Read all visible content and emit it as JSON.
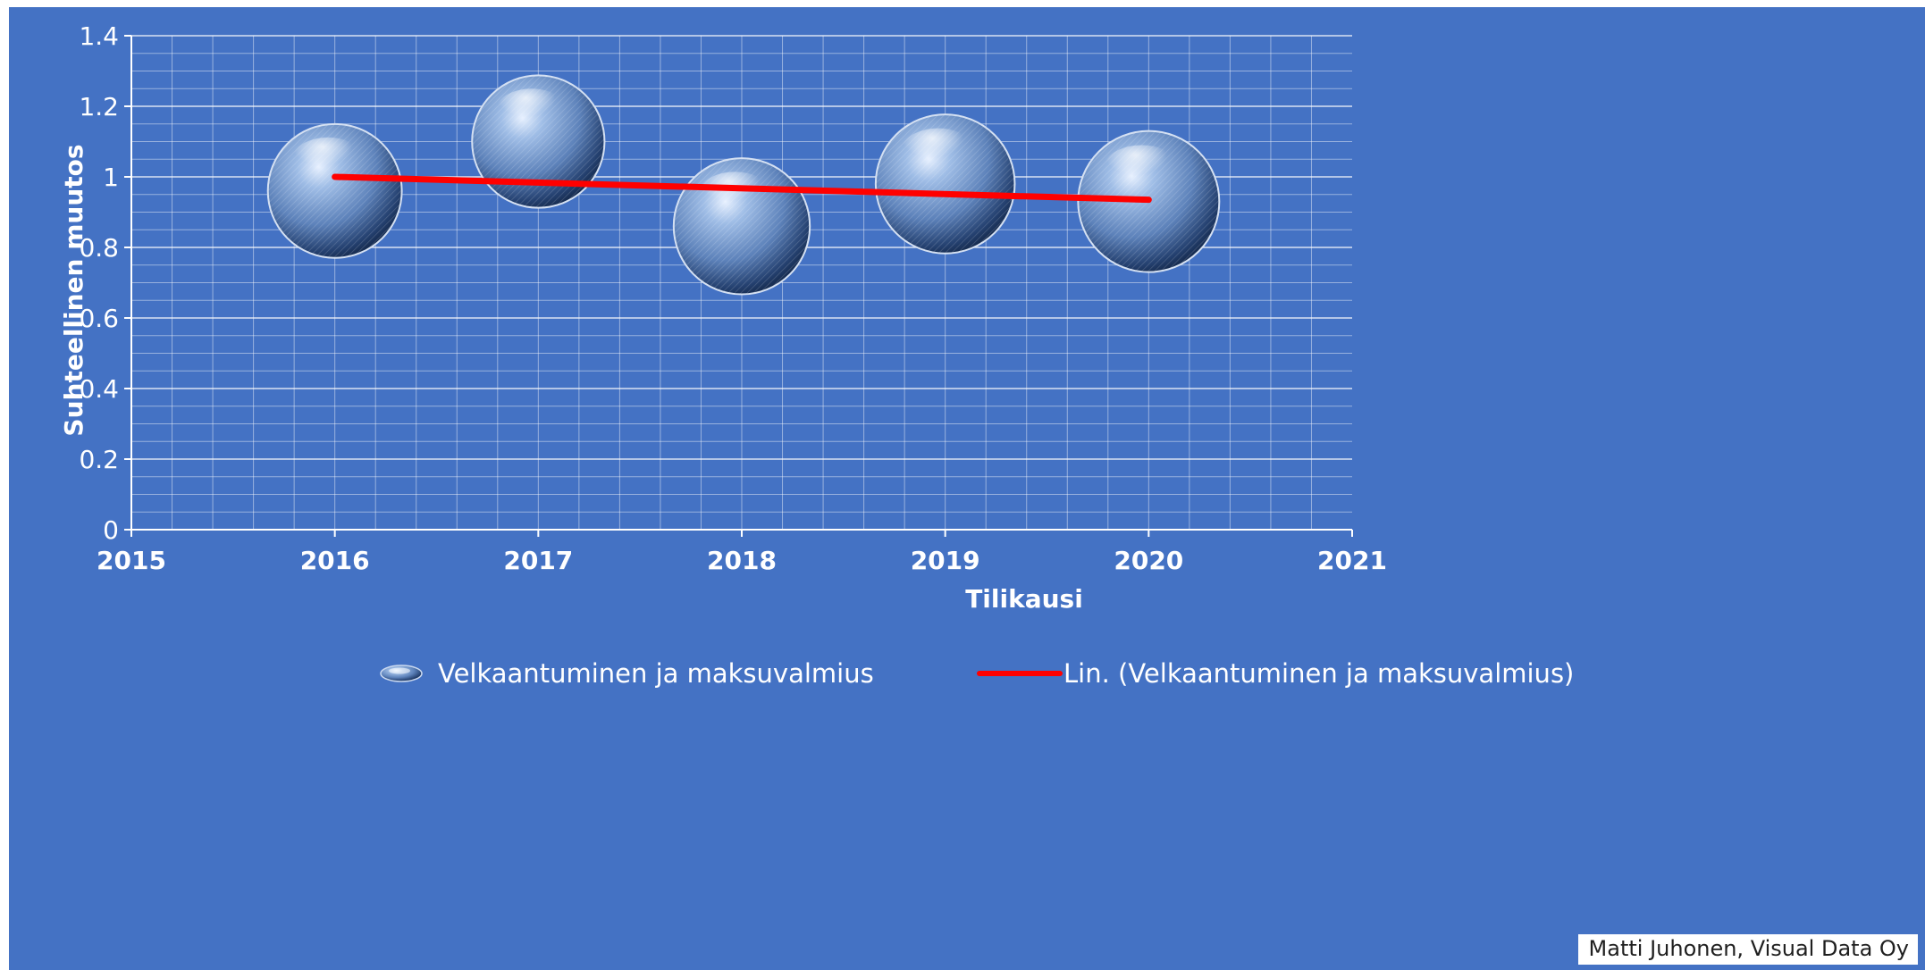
{
  "chart_data": {
    "type": "bubble",
    "title": "",
    "xlabel": "Tilikausi",
    "ylabel": "Suhteellinen muutos",
    "xlim": [
      2015,
      2021
    ],
    "ylim": [
      0,
      1.4
    ],
    "x_ticks": [
      "2015",
      "2016",
      "2017",
      "2018",
      "2019",
      "2020",
      "2021"
    ],
    "y_ticks": [
      "0",
      "0.2",
      "0.4",
      "0.6",
      "0.8",
      "1",
      "1.2",
      "1.4"
    ],
    "grid": true,
    "series": [
      {
        "name": "Velkaantuminen ja maksuvalmius",
        "kind": "bubble",
        "x": [
          2016,
          2017,
          2018,
          2019,
          2020
        ],
        "y": [
          0.96,
          1.1,
          0.86,
          0.98,
          0.93
        ],
        "size": [
          0.9,
          0.88,
          0.93,
          0.97,
          1.0
        ]
      },
      {
        "name": "Lin. (Velkaantuminen ja maksuvalmius)",
        "kind": "trendline",
        "color": "#ff0000",
        "x": [
          2016,
          2020
        ],
        "y": [
          1.0,
          0.935
        ]
      }
    ],
    "legend_position": "bottom",
    "colors": {
      "background": "#4472c4",
      "grid": "#ffffff",
      "trendline": "#ff0000"
    }
  },
  "credit": "Matti Juhonen, Visual Data Oy"
}
